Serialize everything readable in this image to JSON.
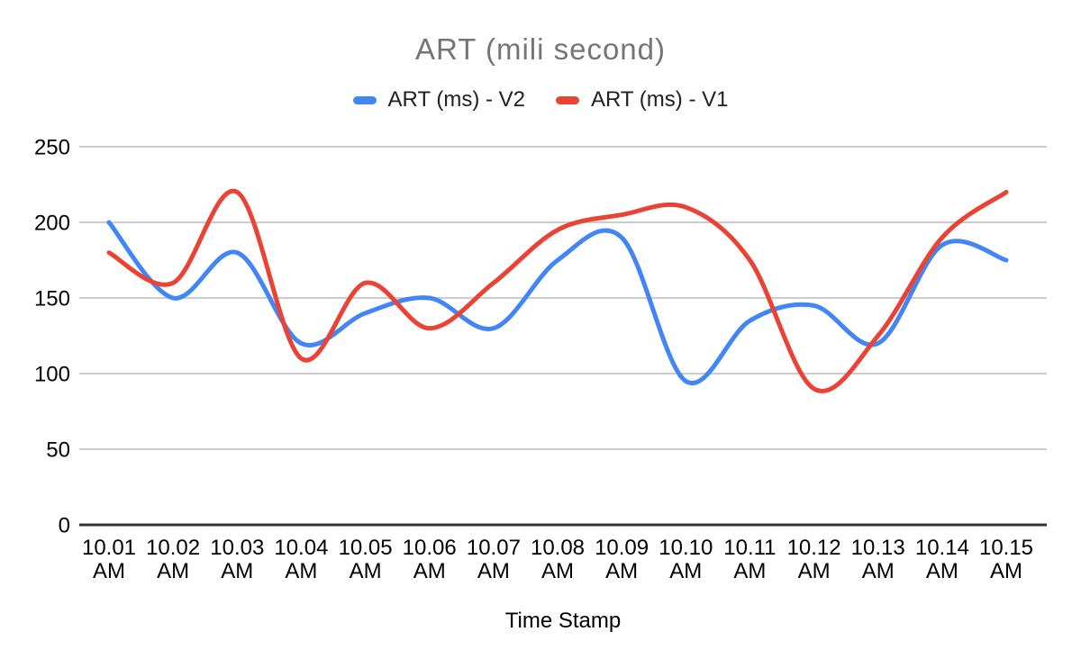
{
  "title": "ART (mili second)",
  "x_axis_title": "Time Stamp",
  "colors": {
    "series_v2_blue": "#4285F4",
    "series_v1_red": "#EA4335",
    "title_text": "#757575",
    "legend_text": "#212121",
    "tick_text": "#000000",
    "gridline": "#CCCCCC",
    "zero_axis_line": "#333333",
    "background": "#FFFFFF"
  },
  "chart_data": {
    "type": "line",
    "smooth": true,
    "title": "ART (mili second)",
    "xlabel": "Time Stamp",
    "ylabel": "",
    "ylim": [
      0,
      250
    ],
    "yticks": [
      0,
      50,
      100,
      150,
      200,
      250
    ],
    "grid": true,
    "legend_position": "top",
    "categories": [
      "10.01 AM",
      "10.02 AM",
      "10.03 AM",
      "10.04 AM",
      "10.05 AM",
      "10.06 AM",
      "10.07 AM",
      "10.08 AM",
      "10.09 AM",
      "10.10 AM",
      "10.11 AM",
      "10.12 AM",
      "10.13 AM",
      "10.14 AM",
      "10.15 AM"
    ],
    "series": [
      {
        "name": "ART (ms) - V2",
        "color": "#4285F4",
        "values": [
          200,
          150,
          180,
          120,
          140,
          150,
          130,
          175,
          190,
          95,
          135,
          145,
          120,
          185,
          175
        ]
      },
      {
        "name": "ART (ms) - V1",
        "color": "#EA4335",
        "values": [
          180,
          160,
          220,
          110,
          160,
          130,
          160,
          195,
          205,
          210,
          175,
          90,
          125,
          190,
          220
        ]
      }
    ]
  }
}
